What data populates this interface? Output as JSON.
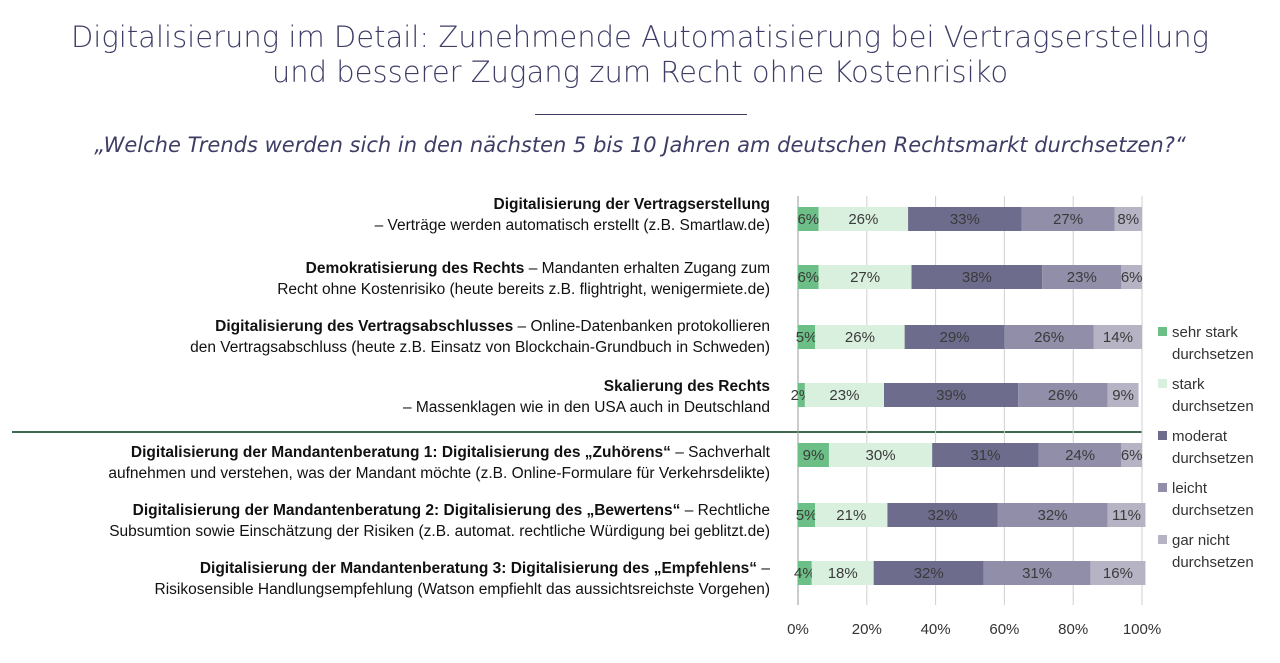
{
  "title_line1": "Digitalisierung im Detail: Zunehmende Automatisierung bei Vertragserstellung",
  "title_line2": "und besserer Zugang zum Recht ohne Kostenrisiko",
  "subtitle": "„Welche Trends werden sich in den nächsten 5 bis 10 Jahren am deutschen Rechtsmarkt durchsetzen?“",
  "rows": [
    {
      "bold": "Digitalisierung der Vertragserstellung",
      "rest1": "",
      "line2": "– Verträge werden automatisch erstellt (z.B. Smartlaw.de)"
    },
    {
      "bold": "Demokratisierung des Rechts",
      "rest1": " – Mandanten erhalten Zugang zum",
      "line2": "Recht ohne Kostenrisiko (heute bereits z.B. flightright, wenigermiete.de)"
    },
    {
      "bold": "Digitalisierung des Vertragsabschlusses",
      "rest1": " – Online-Datenbanken protokollieren",
      "line2": "den Vertragsabschluss (heute z.B. Einsatz von Blockchain-Grundbuch in Schweden)"
    },
    {
      "bold": "Skalierung des Rechts",
      "rest1": "",
      "line2": "– Massenklagen wie in den USA auch in Deutschland"
    },
    {
      "bold": "Digitalisierung der Mandantenberatung 1: Digitalisierung des „Zuhörens“",
      "rest1": " – Sachverhalt",
      "line2": "aufnehmen und verstehen, was der Mandant möchte (z.B. Online-Formulare für Verkehrsdelikte)"
    },
    {
      "bold": "Digitalisierung der Mandantenberatung 2: Digitalisierung des „Bewertens“",
      "rest1": " – Rechtliche",
      "line2": "Subsumtion sowie Einschätzung der Risiken (z.B. automat. rechtliche Würdigung bei geblitzt.de)"
    },
    {
      "bold": "Digitalisierung der Mandantenberatung 3: Digitalisierung des „Empfehlens“",
      "rest1": " –",
      "line2": "Risikosensible Handlungsempfehlung (Watson empfiehlt das aussichtsreichste Vorgehen)"
    }
  ],
  "chart_data": {
    "type": "bar",
    "orientation": "horizontal",
    "stacked": true,
    "percent": true,
    "categories": [
      "Digitalisierung der Vertragserstellung",
      "Demokratisierung des Rechts",
      "Digitalisierung des Vertragsabschlusses",
      "Skalierung des Rechts",
      "Digitalisierung der Mandantenberatung 1",
      "Digitalisierung der Mandantenberatung 2",
      "Digitalisierung der Mandantenberatung 3"
    ],
    "series": [
      {
        "name": "sehr stark durchsetzen",
        "color": "#6cbf86",
        "values": [
          6,
          6,
          5,
          2,
          9,
          5,
          4
        ]
      },
      {
        "name": "stark durchsetzen",
        "color": "#daf0df",
        "values": [
          26,
          27,
          26,
          23,
          30,
          21,
          18
        ]
      },
      {
        "name": "moderat durchsetzen",
        "color": "#6d6c8c",
        "values": [
          33,
          38,
          29,
          39,
          31,
          32,
          32
        ]
      },
      {
        "name": "leicht durchsetzen",
        "color": "#908ea8",
        "values": [
          27,
          23,
          26,
          26,
          24,
          32,
          31
        ]
      },
      {
        "name": "gar nicht durchsetzen",
        "color": "#b5b3c4",
        "values": [
          8,
          6,
          14,
          9,
          6,
          11,
          16
        ]
      }
    ],
    "xlim": [
      0,
      100
    ],
    "xticks": [
      "0%",
      "20%",
      "40%",
      "60%",
      "80%",
      "100%"
    ],
    "grid": true,
    "legend_position": "right",
    "legend": [
      {
        "line1": "sehr stark",
        "line2": "durchsetzen",
        "color": "#6cbf86"
      },
      {
        "line1": "stark",
        "line2": "durchsetzen",
        "color": "#daf0df"
      },
      {
        "line1": "moderat",
        "line2": "durchsetzen",
        "color": "#6d6c8c"
      },
      {
        "line1": "leicht",
        "line2": "durchsetzen",
        "color": "#908ea8"
      },
      {
        "line1": "gar nicht",
        "line2": "durchsetzen",
        "color": "#b5b3c4"
      }
    ]
  }
}
